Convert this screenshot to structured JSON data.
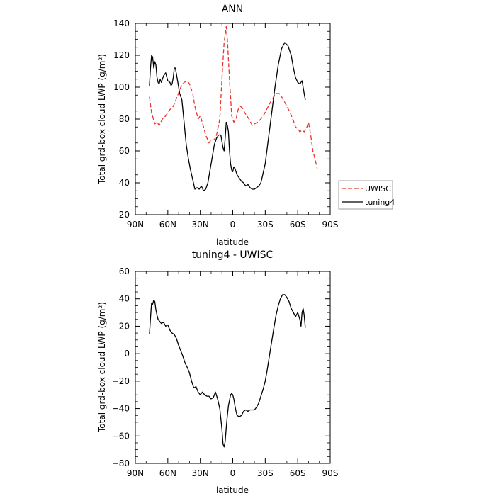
{
  "chart_data": [
    {
      "type": "line",
      "title": "ANN",
      "xlabel": "latitude",
      "ylabel": "Total grd-box cloud LWP (g/m²)",
      "xlim": [
        90,
        -90
      ],
      "ylim": [
        20,
        140
      ],
      "xticks": [
        90,
        60,
        30,
        0,
        -30,
        -60,
        -90
      ],
      "xtick_labels": [
        "90N",
        "60N",
        "30N",
        "0",
        "30S",
        "60S",
        "90S"
      ],
      "yticks": [
        20,
        40,
        60,
        80,
        100,
        120,
        140
      ],
      "ytick_labels": [
        "20",
        "40",
        "60",
        "80",
        "100",
        "120",
        "140"
      ],
      "legend_position": "right",
      "series": [
        {
          "name": "UWISC",
          "color": "#e8332e",
          "style": "dashed",
          "x": [
            77,
            75,
            72,
            70,
            68,
            65,
            62,
            58,
            55,
            52,
            48,
            45,
            42,
            40,
            37,
            35,
            32,
            30,
            27,
            25,
            22,
            20,
            17,
            15,
            12,
            10,
            8,
            6,
            5,
            3,
            1,
            -1,
            -3,
            -5,
            -7,
            -9,
            -11,
            -13,
            -15,
            -18,
            -20,
            -23,
            -26,
            -29,
            -32,
            -36,
            -40,
            -43,
            -46,
            -50,
            -53,
            -56,
            -58,
            -60,
            -62,
            -64,
            -66,
            -68,
            -70,
            -72,
            -74,
            -76,
            -78
          ],
          "values": [
            94,
            84,
            77,
            78,
            76,
            80,
            82,
            86,
            88,
            93,
            100,
            103,
            104,
            102,
            96,
            88,
            80,
            82,
            75,
            70,
            65,
            67,
            67,
            70,
            80,
            105,
            128,
            138,
            130,
            105,
            82,
            78,
            80,
            86,
            88,
            87,
            84,
            82,
            80,
            76,
            77,
            78,
            80,
            83,
            87,
            92,
            96,
            96,
            93,
            88,
            84,
            79,
            75,
            74,
            72,
            73,
            72,
            74,
            78,
            70,
            60,
            55,
            49
          ]
        },
        {
          "name": "tuning4",
          "color": "#000000",
          "style": "solid",
          "x": [
            77,
            76,
            75,
            74,
            73,
            72,
            71,
            70,
            69,
            68,
            67,
            66,
            64,
            62,
            60,
            58,
            57,
            56,
            55,
            54,
            53,
            52,
            51,
            50,
            49,
            47,
            45,
            43,
            41,
            39,
            37,
            35,
            33,
            31,
            29,
            27,
            25,
            23,
            21,
            19,
            17,
            15,
            13,
            11,
            10,
            9,
            8,
            7,
            6,
            5,
            4,
            3,
            2,
            1,
            0,
            -1,
            -2,
            -3,
            -4,
            -6,
            -8,
            -10,
            -12,
            -14,
            -16,
            -18,
            -20,
            -22,
            -24,
            -26,
            -28,
            -30,
            -33,
            -36,
            -39,
            -42,
            -45,
            -48,
            -51,
            -54,
            -56,
            -58,
            -60,
            -62,
            -64,
            -65,
            -66,
            -67
          ],
          "values": [
            101,
            112,
            120,
            119,
            112,
            116,
            114,
            106,
            103,
            102,
            105,
            103,
            107,
            109,
            104,
            103,
            101,
            102,
            106,
            112,
            112,
            108,
            104,
            100,
            96,
            92,
            78,
            64,
            55,
            48,
            42,
            36,
            37,
            36,
            38,
            35,
            36,
            40,
            48,
            56,
            64,
            68,
            70,
            70,
            66,
            62,
            60,
            68,
            78,
            76,
            72,
            60,
            52,
            48,
            47,
            50,
            49,
            47,
            45,
            43,
            41,
            40,
            38,
            39,
            37,
            36,
            36,
            37,
            38,
            40,
            46,
            52,
            68,
            84,
            100,
            114,
            124,
            128,
            126,
            120,
            112,
            106,
            103,
            102,
            104,
            100,
            96,
            92
          ]
        }
      ]
    },
    {
      "type": "line",
      "title": "tuning4 - UWISC",
      "xlabel": "latitude",
      "ylabel": "Total grd-box cloud LWP (g/m²)",
      "xlim": [
        90,
        -90
      ],
      "ylim": [
        -80,
        60
      ],
      "xticks": [
        90,
        60,
        30,
        0,
        -30,
        -60,
        -90
      ],
      "xtick_labels": [
        "90N",
        "60N",
        "30N",
        "0",
        "30S",
        "60S",
        "90S"
      ],
      "yticks": [
        -80,
        -60,
        -40,
        -20,
        0,
        20,
        40,
        60
      ],
      "ytick_labels": [
        "−80",
        "−60",
        "−40",
        "−20",
        "0",
        "20",
        "40",
        "60"
      ],
      "series": [
        {
          "color": "#000000",
          "style": "solid",
          "x": [
            77,
            76,
            75,
            74,
            73,
            72,
            71,
            70,
            69,
            68,
            66,
            64,
            62,
            60,
            58,
            56,
            54,
            52,
            50,
            48,
            46,
            44,
            42,
            40,
            38,
            36,
            34,
            32,
            30,
            28,
            26,
            24,
            22,
            20,
            18,
            16,
            14,
            12,
            10,
            9,
            8,
            7,
            6,
            5,
            4,
            3,
            2,
            1,
            0,
            -1,
            -2,
            -3,
            -4,
            -6,
            -8,
            -10,
            -12,
            -14,
            -16,
            -18,
            -20,
            -22,
            -24,
            -26,
            -28,
            -30,
            -32,
            -34,
            -36,
            -38,
            -40,
            -42,
            -44,
            -46,
            -48,
            -50,
            -52,
            -54,
            -56,
            -58,
            -60,
            -62,
            -63,
            -64,
            -65,
            -66,
            -67
          ],
          "values": [
            14,
            26,
            37,
            36,
            39,
            38,
            32,
            28,
            25,
            24,
            22,
            23,
            20,
            21,
            17,
            15,
            14,
            11,
            6,
            2,
            -2,
            -7,
            -10,
            -14,
            -20,
            -25,
            -24,
            -28,
            -30,
            -28,
            -30,
            -31,
            -31,
            -33,
            -32,
            -28,
            -33,
            -40,
            -55,
            -66,
            -68,
            -64,
            -54,
            -45,
            -38,
            -34,
            -30,
            -29,
            -30,
            -33,
            -38,
            -42,
            -45,
            -46,
            -45,
            -42,
            -41,
            -42,
            -41,
            -41,
            -41,
            -39,
            -36,
            -31,
            -26,
            -20,
            -11,
            -1,
            9,
            19,
            28,
            35,
            40,
            43,
            43,
            41,
            38,
            33,
            30,
            27,
            30,
            25,
            20,
            30,
            33,
            28,
            19
          ]
        }
      ]
    }
  ]
}
